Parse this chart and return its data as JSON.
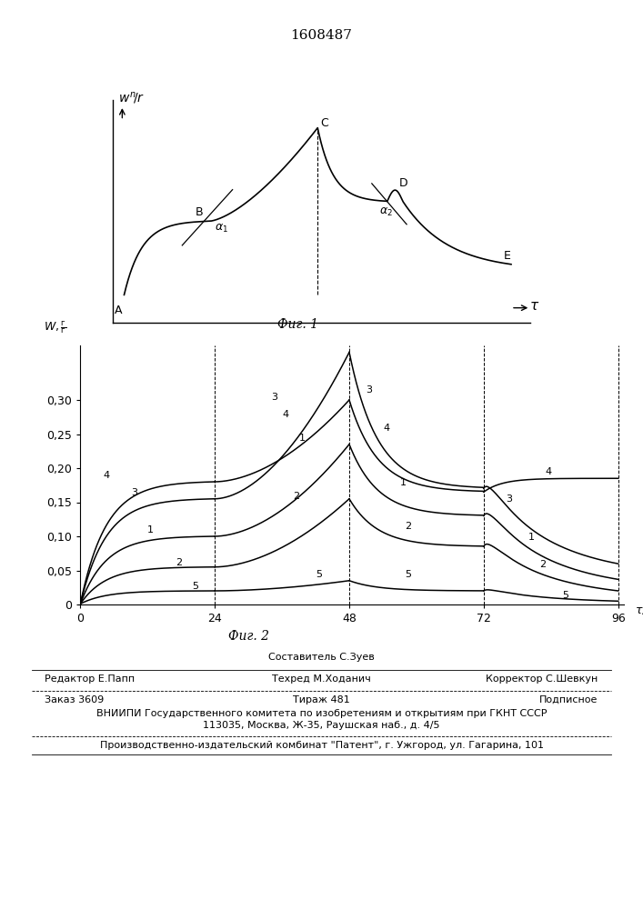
{
  "title": "1608487",
  "fig1_caption": "Фиг. 1",
  "fig2_caption": "Фиг. 2",
  "fig2_xticks": [
    0,
    24,
    48,
    72,
    96
  ],
  "fig2_ytick_vals": [
    0,
    0.05,
    0.1,
    0.15,
    0.2,
    0.25,
    0.3
  ],
  "fig2_ytick_labels": [
    "0",
    "0,05",
    "0,10",
    "0,15",
    "0,20",
    "0,25",
    "0,30"
  ],
  "footer_composer": "Составитель С.Зуев",
  "footer_editor": "Редактор Е.Папп",
  "footer_tech": "Техред М.Ходанич",
  "footer_corr": "Корректор С.Шевкун",
  "footer_order": "Заказ 3609",
  "footer_circ": "Тираж 481",
  "footer_sub": "Подписное",
  "footer_vniip": "ВНИИПИ Государственного комитета по изобретениям и открытиям при ГКНТ СССР",
  "footer_addr": "113035, Москва, Ж-35, Раушская наб., д. 4/5",
  "footer_prod": "Производственно-издательский комбинат \"Патент\", г. Ужгород, ул. Гагарина, 101"
}
